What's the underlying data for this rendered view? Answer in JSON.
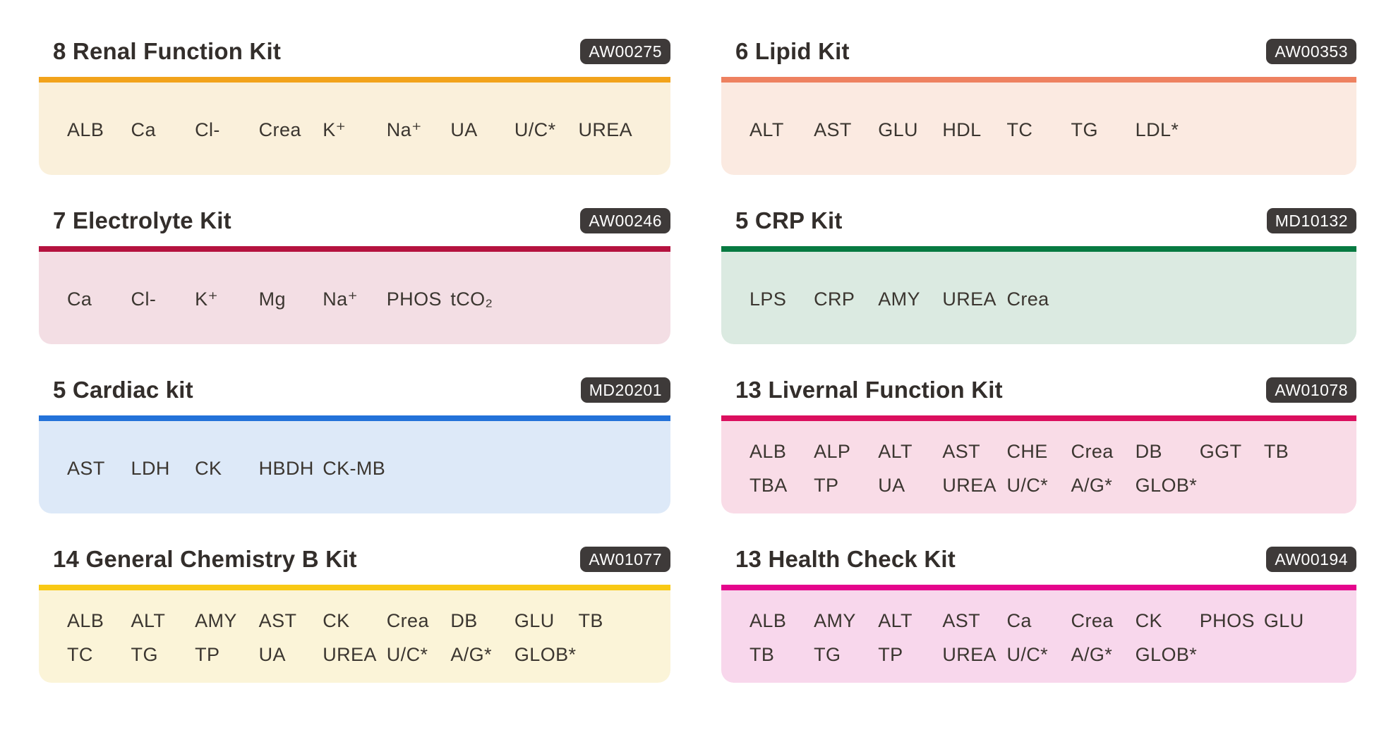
{
  "page": {
    "background": "#FFFFFF"
  },
  "badge": {
    "background": "#3E3A39",
    "text_color": "#FFFFFF"
  },
  "text": {
    "title_color": "#332E2B",
    "item_color": "#3B3630"
  },
  "cards": [
    {
      "title": "8 Renal Function Kit",
      "code": "AW00275",
      "bar_color": "#F2A31B",
      "panel_color": "#FAF0DB",
      "items": [
        "ALB",
        "Ca",
        "Cl-",
        "Crea",
        "K⁺",
        "Na⁺",
        "UA",
        "U/C*",
        "UREA"
      ]
    },
    {
      "title": "6 Lipid Kit",
      "code": "AW00353",
      "bar_color": "#EE8160",
      "panel_color": "#FBEAE1",
      "items": [
        "ALT",
        "AST",
        "GLU",
        "HDL",
        "TC",
        "TG",
        "LDL*"
      ]
    },
    {
      "title": "7 Electrolyte Kit",
      "code": "AW00246",
      "bar_color": "#B5123F",
      "panel_color": "#F3DEE4",
      "items": [
        "Ca",
        "Cl-",
        "K⁺",
        "Mg",
        "Na⁺",
        "PHOS",
        "tCO₂"
      ]
    },
    {
      "title": "5 CRP Kit",
      "code": "MD10132",
      "bar_color": "#077A41",
      "panel_color": "#DBEAE1",
      "items": [
        "LPS",
        "CRP",
        "AMY",
        "UREA",
        "Crea"
      ]
    },
    {
      "title": "5 Cardiac kit",
      "code": "MD20201",
      "bar_color": "#2372D9",
      "panel_color": "#DDE9F8",
      "items": [
        "AST",
        "LDH",
        "CK",
        "HBDH",
        "CK-MB"
      ]
    },
    {
      "title": "13 Livernal Function Kit",
      "code": "AW01078",
      "bar_color": "#DB0F5E",
      "panel_color": "#F9DCE7",
      "items": [
        "ALB",
        "ALP",
        "ALT",
        "AST",
        "CHE",
        "Crea",
        "DB",
        "GGT",
        "TB",
        "TBA",
        "TP",
        "UA",
        "UREA",
        "U/C*",
        "A/G*",
        "GLOB*"
      ]
    },
    {
      "title": "14 General Chemistry B Kit",
      "code": "AW01077",
      "bar_color": "#F9C914",
      "panel_color": "#FBF4D8",
      "items": [
        "ALB",
        "ALT",
        "AMY",
        "AST",
        "CK",
        "Crea",
        "DB",
        "GLU",
        "TB",
        "TC",
        "TG",
        "TP",
        "UA",
        "UREA",
        "U/C*",
        "A/G*",
        "GLOB*"
      ]
    },
    {
      "title": "13 Health Check Kit",
      "code": "AW00194",
      "bar_color": "#E5058C",
      "panel_color": "#F8D7EC",
      "items": [
        "ALB",
        "AMY",
        "ALT",
        "AST",
        "Ca",
        "Crea",
        "CK",
        "PHOS",
        "GLU",
        "TB",
        "TG",
        "TP",
        "UREA",
        "U/C*",
        "A/G*",
        "GLOB*"
      ]
    }
  ]
}
